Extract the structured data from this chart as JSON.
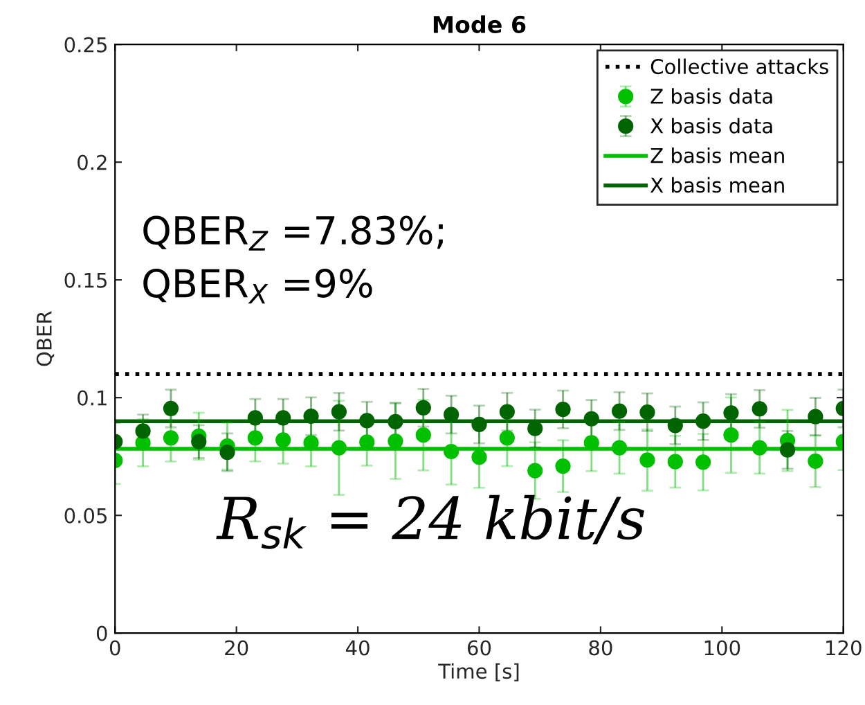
{
  "chart_data": {
    "type": "scatter",
    "title": "Mode 6",
    "xlabel": "Time [s]",
    "ylabel": "QBER",
    "x": [
      0,
      4.6,
      9.2,
      13.8,
      18.5,
      23.1,
      27.7,
      32.3,
      36.9,
      41.5,
      46.2,
      50.8,
      55.4,
      60,
      64.6,
      69.2,
      73.8,
      78.5,
      83.1,
      87.7,
      92.3,
      96.9,
      101.5,
      106.2,
      110.8,
      115.4,
      120
    ],
    "series": [
      {
        "name": "Z basis data",
        "color": "#00c000",
        "values": [
          0.0733,
          0.0808,
          0.0829,
          0.0836,
          0.0794,
          0.0829,
          0.082,
          0.0808,
          0.0787,
          0.0811,
          0.0815,
          0.0841,
          0.0771,
          0.0747,
          0.0829,
          0.069,
          0.0709,
          0.0808,
          0.0787,
          0.0735,
          0.0728,
          0.0726,
          0.0841,
          0.0787,
          0.0818,
          0.073,
          0.0813
        ],
        "errors": [
          0.01,
          0.01,
          0.01,
          0.01,
          0.01,
          0.01,
          0.01,
          0.01,
          0.02,
          0.01,
          0.016,
          0.015,
          0.014,
          0.013,
          0.012,
          0.012,
          0.011,
          0.012,
          0.011,
          0.013,
          0.011,
          0.012,
          0.016,
          0.011,
          0.013,
          0.011,
          0.012
        ]
      },
      {
        "name": "X basis data",
        "color": "#006400",
        "values": [
          0.0813,
          0.0858,
          0.0954,
          0.0813,
          0.0768,
          0.0914,
          0.0914,
          0.0921,
          0.094,
          0.0902,
          0.0898,
          0.0957,
          0.0928,
          0.0886,
          0.094,
          0.0869,
          0.095,
          0.091,
          0.0943,
          0.0938,
          0.0882,
          0.09,
          0.0935,
          0.0952,
          0.0778,
          0.0919,
          0.0954
        ],
        "errors": [
          0.008,
          0.007,
          0.008,
          0.007,
          0.008,
          0.008,
          0.008,
          0.008,
          0.008,
          0.008,
          0.008,
          0.008,
          0.008,
          0.008,
          0.008,
          0.008,
          0.008,
          0.008,
          0.008,
          0.008,
          0.008,
          0.008,
          0.008,
          0.008,
          0.008,
          0.008,
          0.008
        ]
      }
    ],
    "ref_lines": [
      {
        "axis": "y",
        "value": 0.11,
        "label": "Collective attacks",
        "color": "#000000",
        "line_style": "dotted"
      },
      {
        "axis": "y",
        "value": 0.0783,
        "label": "Z basis mean",
        "color": "#00c000",
        "line_style": "solid"
      },
      {
        "axis": "y",
        "value": 0.09,
        "label": "X basis mean",
        "color": "#006400",
        "line_style": "solid"
      }
    ],
    "annotations": [
      "QBER$_{Z}$ =7.83%;",
      "QBER$_{X}$ =9%",
      "R$_{sk}$ = 24 kbit/s"
    ],
    "xlim": [
      0,
      120
    ],
    "xticks": [
      0,
      20,
      40,
      60,
      80,
      100,
      120
    ],
    "ylim": [
      0,
      0.25
    ],
    "yticks": [
      0,
      0.05,
      0.1,
      0.15,
      0.2,
      0.25
    ],
    "marker": "circle",
    "legend": "top right",
    "grid": false
  }
}
